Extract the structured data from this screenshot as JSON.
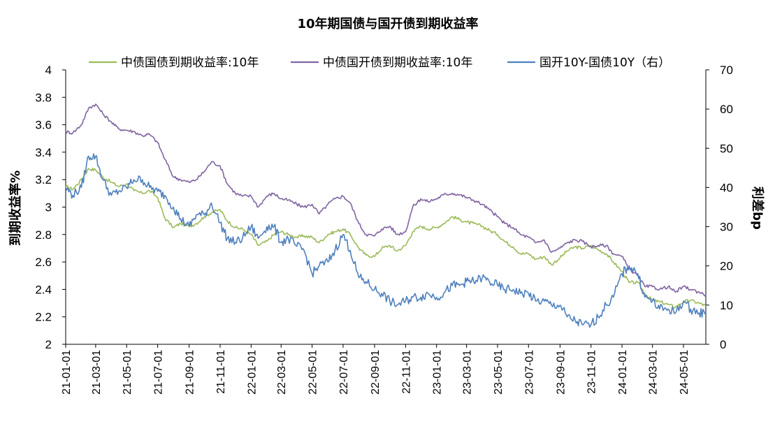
{
  "chart_data": {
    "type": "line",
    "title": "10年期国债与国开债到期收益率",
    "ylabel_left": "到期收益率%",
    "ylabel_right": "利差bp",
    "y_left_range": [
      2,
      4
    ],
    "y_left_ticks": [
      "4",
      "3.8",
      "3.6",
      "3.4",
      "3.2",
      "3",
      "2.8",
      "2.6",
      "2.4",
      "2.2",
      "2"
    ],
    "y_right_range": [
      0,
      70
    ],
    "y_right_ticks": [
      "70",
      "60",
      "50",
      "40",
      "30",
      "20",
      "10",
      "0"
    ],
    "x_tick_labels": [
      "21-01-01",
      "21-03-01",
      "21-05-01",
      "21-07-01",
      "21-09-01",
      "21-11-01",
      "22-01-01",
      "22-03-01",
      "22-05-01",
      "22-07-01",
      "22-09-01",
      "22-11-01",
      "23-01-01",
      "23-03-01",
      "23-05-01",
      "23-07-01",
      "23-09-01",
      "23-11-01",
      "24-01-01",
      "24-03-01",
      "24-05-01"
    ],
    "x_range": [
      "2021-01-01",
      "2024-06-14"
    ],
    "legend_placement": "top",
    "grid": false,
    "series": [
      {
        "name": "中债国债到期收益率:10年",
        "axis": "left",
        "color": "#9BBB59",
        "x": [
          "2021-01-01",
          "2021-01-15",
          "2021-02-01",
          "2021-02-15",
          "2021-03-01",
          "2021-03-15",
          "2021-04-01",
          "2021-04-15",
          "2021-05-01",
          "2021-05-15",
          "2021-06-01",
          "2021-06-15",
          "2021-07-01",
          "2021-07-15",
          "2021-08-01",
          "2021-08-15",
          "2021-09-01",
          "2021-09-15",
          "2021-10-01",
          "2021-10-15",
          "2021-11-01",
          "2021-11-15",
          "2021-12-01",
          "2021-12-15",
          "2022-01-01",
          "2022-01-15",
          "2022-02-01",
          "2022-02-15",
          "2022-03-01",
          "2022-03-15",
          "2022-04-01",
          "2022-04-15",
          "2022-05-01",
          "2022-05-15",
          "2022-06-01",
          "2022-06-15",
          "2022-07-01",
          "2022-07-15",
          "2022-08-01",
          "2022-08-15",
          "2022-09-01",
          "2022-09-15",
          "2022-10-01",
          "2022-10-15",
          "2022-11-01",
          "2022-11-15",
          "2022-12-01",
          "2022-12-15",
          "2023-01-01",
          "2023-01-15",
          "2023-02-01",
          "2023-02-15",
          "2023-03-01",
          "2023-03-15",
          "2023-04-01",
          "2023-04-15",
          "2023-05-01",
          "2023-05-15",
          "2023-06-01",
          "2023-06-15",
          "2023-07-01",
          "2023-07-15",
          "2023-08-01",
          "2023-08-15",
          "2023-09-01",
          "2023-09-15",
          "2023-10-01",
          "2023-10-15",
          "2023-11-01",
          "2023-11-15",
          "2023-12-01",
          "2023-12-15",
          "2024-01-01",
          "2024-01-15",
          "2024-02-01",
          "2024-02-15",
          "2024-03-01",
          "2024-03-15",
          "2024-04-01",
          "2024-04-15",
          "2024-05-01",
          "2024-05-15",
          "2024-06-01",
          "2024-06-14"
        ],
        "values": [
          3.15,
          3.13,
          3.2,
          3.28,
          3.27,
          3.22,
          3.18,
          3.15,
          3.17,
          3.12,
          3.1,
          3.12,
          3.07,
          2.92,
          2.85,
          2.88,
          2.86,
          2.88,
          2.93,
          2.96,
          2.98,
          2.9,
          2.85,
          2.84,
          2.8,
          2.72,
          2.75,
          2.8,
          2.82,
          2.8,
          2.78,
          2.79,
          2.78,
          2.74,
          2.8,
          2.82,
          2.84,
          2.8,
          2.7,
          2.65,
          2.64,
          2.7,
          2.72,
          2.68,
          2.72,
          2.82,
          2.86,
          2.84,
          2.85,
          2.88,
          2.93,
          2.91,
          2.89,
          2.88,
          2.86,
          2.83,
          2.8,
          2.75,
          2.71,
          2.66,
          2.66,
          2.62,
          2.64,
          2.58,
          2.63,
          2.68,
          2.71,
          2.7,
          2.72,
          2.69,
          2.66,
          2.6,
          2.53,
          2.45,
          2.45,
          2.37,
          2.32,
          2.31,
          2.29,
          2.27,
          2.31,
          2.32,
          2.3,
          2.28
        ]
      },
      {
        "name": "中债国开债到期收益率:10年",
        "axis": "left",
        "color": "#8064A2",
        "x": [
          "2021-01-01",
          "2021-01-15",
          "2021-02-01",
          "2021-02-15",
          "2021-03-01",
          "2021-03-15",
          "2021-04-01",
          "2021-04-15",
          "2021-05-01",
          "2021-05-15",
          "2021-06-01",
          "2021-06-15",
          "2021-07-01",
          "2021-07-15",
          "2021-08-01",
          "2021-08-15",
          "2021-09-01",
          "2021-09-15",
          "2021-10-01",
          "2021-10-15",
          "2021-11-01",
          "2021-11-15",
          "2021-12-01",
          "2021-12-15",
          "2022-01-01",
          "2022-01-15",
          "2022-02-01",
          "2022-02-15",
          "2022-03-01",
          "2022-03-15",
          "2022-04-01",
          "2022-04-15",
          "2022-05-01",
          "2022-05-15",
          "2022-06-01",
          "2022-06-15",
          "2022-07-01",
          "2022-07-15",
          "2022-08-01",
          "2022-08-15",
          "2022-09-01",
          "2022-09-15",
          "2022-10-01",
          "2022-10-15",
          "2022-11-01",
          "2022-11-15",
          "2022-12-01",
          "2022-12-15",
          "2023-01-01",
          "2023-01-15",
          "2023-02-01",
          "2023-02-15",
          "2023-03-01",
          "2023-03-15",
          "2023-04-01",
          "2023-04-15",
          "2023-05-01",
          "2023-05-15",
          "2023-06-01",
          "2023-06-15",
          "2023-07-01",
          "2023-07-15",
          "2023-08-01",
          "2023-08-15",
          "2023-09-01",
          "2023-09-15",
          "2023-10-01",
          "2023-10-15",
          "2023-11-01",
          "2023-11-15",
          "2023-12-01",
          "2023-12-15",
          "2024-01-01",
          "2024-01-15",
          "2024-02-01",
          "2024-02-15",
          "2024-03-01",
          "2024-03-15",
          "2024-04-01",
          "2024-04-15",
          "2024-05-01",
          "2024-05-15",
          "2024-06-01",
          "2024-06-14"
        ],
        "values": [
          3.55,
          3.54,
          3.6,
          3.72,
          3.75,
          3.68,
          3.62,
          3.57,
          3.56,
          3.55,
          3.52,
          3.53,
          3.47,
          3.35,
          3.22,
          3.2,
          3.18,
          3.2,
          3.26,
          3.33,
          3.3,
          3.17,
          3.1,
          3.08,
          3.08,
          3.0,
          3.08,
          3.1,
          3.06,
          3.05,
          3.02,
          3.0,
          3.02,
          2.95,
          3.02,
          3.06,
          3.08,
          3.03,
          2.88,
          2.8,
          2.79,
          2.84,
          2.86,
          2.8,
          2.82,
          3.0,
          3.06,
          3.04,
          3.06,
          3.09,
          3.1,
          3.09,
          3.07,
          3.05,
          3.02,
          2.98,
          2.93,
          2.88,
          2.85,
          2.8,
          2.78,
          2.74,
          2.76,
          2.67,
          2.7,
          2.74,
          2.76,
          2.75,
          2.71,
          2.72,
          2.72,
          2.66,
          2.64,
          2.55,
          2.5,
          2.42,
          2.42,
          2.4,
          2.42,
          2.38,
          2.42,
          2.4,
          2.38,
          2.36
        ]
      },
      {
        "name": "国开10Y-国债10Y（右）",
        "axis": "right",
        "color": "#4F81BD",
        "x": [
          "2021-01-01",
          "2021-01-15",
          "2021-02-01",
          "2021-02-15",
          "2021-03-01",
          "2021-03-15",
          "2021-04-01",
          "2021-04-15",
          "2021-05-01",
          "2021-05-15",
          "2021-06-01",
          "2021-06-15",
          "2021-07-01",
          "2021-07-15",
          "2021-08-01",
          "2021-08-15",
          "2021-09-01",
          "2021-09-15",
          "2021-10-01",
          "2021-10-15",
          "2021-11-01",
          "2021-11-15",
          "2021-12-01",
          "2021-12-15",
          "2022-01-01",
          "2022-01-15",
          "2022-02-01",
          "2022-02-15",
          "2022-03-01",
          "2022-03-15",
          "2022-04-01",
          "2022-04-15",
          "2022-05-01",
          "2022-05-15",
          "2022-06-01",
          "2022-06-15",
          "2022-07-01",
          "2022-07-15",
          "2022-08-01",
          "2022-08-15",
          "2022-09-01",
          "2022-09-15",
          "2022-10-01",
          "2022-10-15",
          "2022-11-01",
          "2022-11-15",
          "2022-12-01",
          "2022-12-15",
          "2023-01-01",
          "2023-01-15",
          "2023-02-01",
          "2023-02-15",
          "2023-03-01",
          "2023-03-15",
          "2023-04-01",
          "2023-04-15",
          "2023-05-01",
          "2023-05-15",
          "2023-06-01",
          "2023-06-15",
          "2023-07-01",
          "2023-07-15",
          "2023-08-01",
          "2023-08-15",
          "2023-09-01",
          "2023-09-15",
          "2023-10-01",
          "2023-10-15",
          "2023-11-01",
          "2023-11-15",
          "2023-12-01",
          "2023-12-15",
          "2024-01-01",
          "2024-01-15",
          "2024-02-01",
          "2024-02-15",
          "2024-03-01",
          "2024-03-15",
          "2024-04-01",
          "2024-04-15",
          "2024-05-01",
          "2024-05-15",
          "2024-06-01",
          "2024-06-14"
        ],
        "values": [
          40,
          38,
          40,
          48,
          48,
          42,
          38,
          39,
          40,
          42,
          42,
          40,
          39,
          38,
          35,
          32,
          30,
          33,
          33,
          36,
          31,
          27,
          26,
          27,
          30,
          27,
          30,
          30,
          26,
          27,
          25,
          24,
          18,
          20,
          21,
          24,
          28,
          24,
          17,
          16,
          14,
          13,
          11,
          10,
          11,
          12,
          12,
          13,
          12,
          13,
          15,
          15,
          16,
          16,
          17,
          16,
          15,
          14,
          14,
          13,
          13,
          11,
          11,
          10,
          10,
          7,
          6,
          5,
          5,
          7,
          10,
          12,
          18,
          20,
          18,
          12,
          11,
          9,
          9,
          8,
          11,
          9,
          8,
          8
        ]
      }
    ]
  }
}
